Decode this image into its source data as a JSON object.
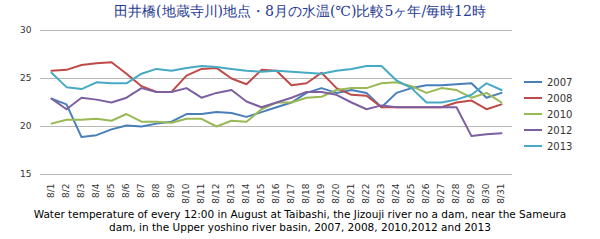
{
  "chart_data": {
    "type": "line",
    "title": "田井橋(地蔵寺川)地点・8月の水温(℃)比較5ヶ年/毎時12時",
    "caption": "Water temperature of every 12:00 in August at Taibashi, the Jizouji river no a dam, near the Sameura dam, in the Upper yoshino river basin, 2007, 2008, 2010,2012 and 2013",
    "categories": [
      "8/1",
      "8/2",
      "8/3",
      "8/4",
      "8/5",
      "8/6",
      "8/7",
      "8/8",
      "8/9",
      "8/10",
      "8/11",
      "8/12",
      "8/13",
      "8/14",
      "8/15",
      "8/16",
      "8/17",
      "8/18",
      "8/19",
      "8/20",
      "8/21",
      "8/22",
      "8/23",
      "8/24",
      "8/25",
      "8/26",
      "8/27",
      "8/28",
      "8/29",
      "8/30",
      "8/31"
    ],
    "series": [
      {
        "name": "2007",
        "color": "#4a7ebb",
        "values": [
          22.9,
          22.3,
          18.9,
          19.1,
          19.7,
          20.1,
          20.0,
          20.3,
          20.5,
          21.3,
          21.3,
          21.5,
          21.4,
          21.0,
          21.5,
          22.0,
          22.5,
          23.5,
          24.0,
          23.5,
          23.8,
          23.5,
          22.0,
          23.5,
          24.0,
          24.3,
          24.3,
          24.4,
          24.5,
          23.0,
          23.5
        ]
      },
      {
        "name": "2008",
        "color": "#be4b48",
        "values": [
          25.8,
          25.9,
          26.4,
          26.6,
          26.7,
          25.5,
          24.2,
          23.6,
          23.6,
          25.3,
          26.0,
          26.1,
          25.0,
          24.4,
          25.9,
          25.8,
          24.3,
          24.5,
          25.6,
          24.0,
          23.3,
          23.2,
          22.0,
          22.0,
          22.0,
          22.0,
          22.0,
          22.5,
          22.7,
          21.8,
          22.3
        ]
      },
      {
        "name": "2010",
        "color": "#98b954",
        "values": [
          20.3,
          20.7,
          20.7,
          20.8,
          20.6,
          21.3,
          20.5,
          20.5,
          20.4,
          20.8,
          20.8,
          20.0,
          20.6,
          20.5,
          21.8,
          22.5,
          22.5,
          23.0,
          23.1,
          23.8,
          24.0,
          24.0,
          24.5,
          24.6,
          24.2,
          23.5,
          24.0,
          23.8,
          23.0,
          23.5,
          22.5
        ]
      },
      {
        "name": "2012",
        "color": "#7d60a0",
        "values": [
          22.9,
          21.8,
          23.0,
          22.8,
          22.5,
          23.0,
          24.0,
          23.6,
          23.6,
          24.0,
          23.0,
          23.5,
          23.8,
          22.6,
          22.0,
          22.5,
          23.0,
          23.6,
          23.6,
          23.3,
          22.5,
          21.8,
          22.2,
          22.0,
          22.0,
          22.0,
          22.0,
          22.0,
          19.0,
          19.2,
          19.3
        ]
      },
      {
        "name": "2013",
        "color": "#46aac5",
        "values": [
          25.6,
          24.1,
          23.9,
          24.6,
          24.5,
          24.5,
          25.5,
          26.0,
          25.8,
          26.1,
          26.3,
          26.2,
          26.0,
          25.8,
          25.7,
          25.8,
          25.7,
          25.6,
          25.5,
          25.8,
          26.0,
          26.3,
          26.3,
          24.8,
          24.0,
          22.5,
          22.5,
          22.8,
          23.3,
          24.5,
          23.8
        ]
      }
    ],
    "ylim": [
      15,
      30
    ],
    "yticks": [
      15,
      20,
      25,
      30
    ],
    "grid": true,
    "legend": "right"
  }
}
